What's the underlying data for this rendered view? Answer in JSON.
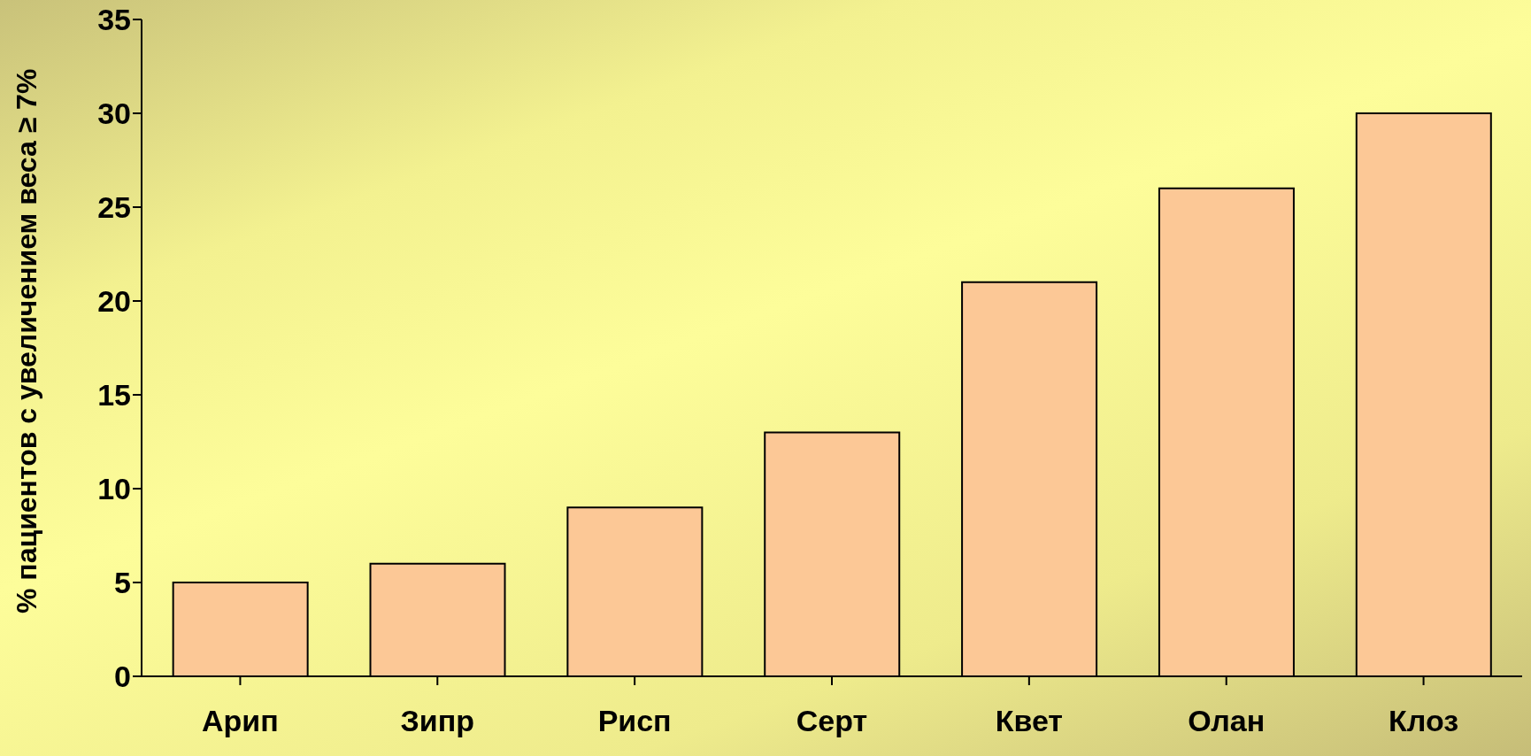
{
  "chart_data": {
    "type": "bar",
    "ylabel": "% пациентов с увеличением веса ≥ 7%",
    "categories": [
      "Арип",
      "Зипр",
      "Рисп",
      "Серт",
      "Квет",
      "Олан",
      "Клоз"
    ],
    "values": [
      5,
      6,
      9,
      13,
      21,
      26,
      30
    ],
    "color": "#fcc896",
    "ylim": [
      0,
      35
    ],
    "yticks": [
      0,
      5,
      10,
      15,
      20,
      25,
      30,
      35
    ],
    "grid": false,
    "legend": false
  }
}
